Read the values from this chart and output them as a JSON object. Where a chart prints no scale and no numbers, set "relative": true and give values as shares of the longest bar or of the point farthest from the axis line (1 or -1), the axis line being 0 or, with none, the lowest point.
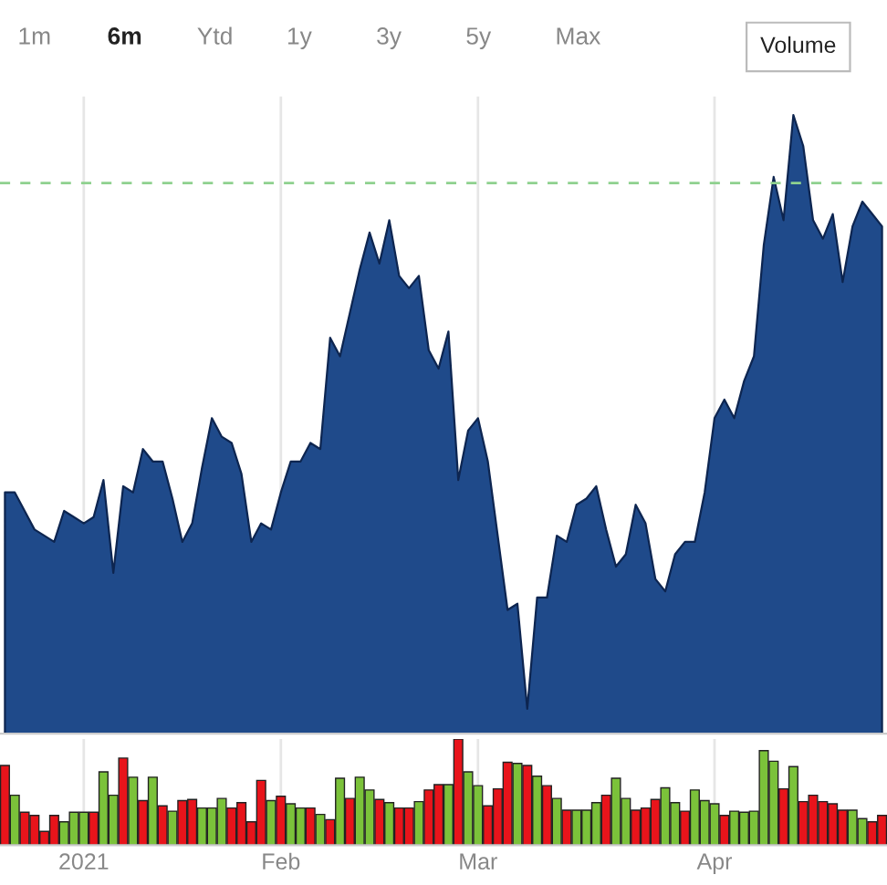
{
  "chart_data": [
    {
      "type": "area",
      "relative": true,
      "grid": "x",
      "annotations": [
        "1m",
        "6m",
        "Ytd",
        "1y",
        "3y",
        "5y",
        "Max",
        "Volume"
      ],
      "categories": [
        null,
        null,
        null,
        null,
        null,
        null,
        null,
        null,
        null,
        null,
        null,
        null,
        null,
        null,
        null,
        null,
        null,
        null,
        null,
        null,
        null,
        null,
        null,
        null,
        null,
        null,
        null,
        null,
        null,
        null,
        null,
        null,
        null,
        null,
        null,
        null,
        null,
        null,
        null,
        null,
        null,
        null,
        null,
        null,
        null,
        null,
        null,
        null,
        null,
        null,
        null,
        null,
        null,
        null,
        null,
        null,
        null,
        null,
        null,
        null,
        null,
        null,
        null,
        null,
        null,
        null,
        null,
        null,
        null,
        null,
        null,
        null,
        null,
        null,
        null,
        null,
        null,
        null,
        null,
        null,
        null,
        null,
        null,
        null,
        null,
        null,
        null,
        null,
        null,
        null
      ],
      "series": [
        {
          "color": "#1f4a8a",
          "values": [
            0.39,
            0.39,
            0.36,
            0.33,
            0.32,
            0.31,
            0.36,
            0.35,
            0.34,
            0.35,
            0.41,
            0.26,
            0.4,
            0.39,
            0.46,
            0.44,
            0.44,
            0.38,
            0.31,
            0.34,
            0.43,
            0.51,
            0.48,
            0.47,
            0.42,
            0.31,
            0.34,
            0.33,
            0.39,
            0.44,
            0.44,
            0.47,
            0.46,
            0.64,
            0.61,
            0.68,
            0.75,
            0.81,
            0.76,
            0.83,
            0.74,
            0.72,
            0.74,
            0.62,
            0.59,
            0.65,
            0.41,
            0.49,
            0.51,
            0.44,
            0.32,
            0.2,
            0.21,
            0.04,
            0.22,
            0.22,
            0.32,
            0.31,
            0.37,
            0.38,
            0.4,
            0.33,
            0.27,
            0.29,
            0.37,
            0.34,
            0.25,
            0.23,
            0.29,
            0.31,
            0.31,
            0.39,
            0.51,
            0.54,
            0.51,
            0.57,
            0.61,
            0.79,
            0.9,
            0.83,
            1.0,
            0.95,
            0.83,
            0.8,
            0.84,
            0.73,
            0.82,
            0.86,
            0.84,
            0.82
          ]
        }
      ],
      "ref_lines": [
        {
          "axis": "y",
          "value": 0.89,
          "color": "#8fd18f",
          "line_style": "dashed"
        }
      ]
    },
    {
      "type": "bar",
      "relative": true,
      "grid": "x",
      "categories": [
        null,
        null,
        null,
        null,
        null,
        null,
        null,
        null,
        "2021",
        null,
        null,
        null,
        null,
        null,
        null,
        null,
        null,
        null,
        null,
        null,
        null,
        null,
        null,
        null,
        null,
        null,
        null,
        null,
        "Feb",
        null,
        null,
        null,
        null,
        null,
        null,
        null,
        null,
        null,
        null,
        null,
        null,
        null,
        null,
        null,
        null,
        null,
        null,
        null,
        "Mar",
        null,
        null,
        null,
        null,
        null,
        null,
        null,
        null,
        null,
        null,
        null,
        null,
        null,
        null,
        null,
        null,
        null,
        null,
        null,
        null,
        null,
        null,
        null,
        "Apr",
        null,
        null,
        null,
        null,
        null,
        null,
        null,
        null,
        null,
        null,
        null,
        null,
        null,
        null,
        null,
        null,
        null
      ],
      "values": [
        0.75,
        0.47,
        0.31,
        0.28,
        0.13,
        0.28,
        0.22,
        0.31,
        0.31,
        0.31,
        0.69,
        0.47,
        0.82,
        0.64,
        0.42,
        0.64,
        0.37,
        0.32,
        0.42,
        0.43,
        0.35,
        0.35,
        0.44,
        0.35,
        0.4,
        0.22,
        0.61,
        0.42,
        0.46,
        0.39,
        0.35,
        0.35,
        0.29,
        0.24,
        0.63,
        0.44,
        0.64,
        0.52,
        0.43,
        0.4,
        0.35,
        0.35,
        0.41,
        0.52,
        0.57,
        0.57,
        1.0,
        0.69,
        0.56,
        0.37,
        0.53,
        0.78,
        0.77,
        0.75,
        0.65,
        0.56,
        0.44,
        0.33,
        0.33,
        0.33,
        0.4,
        0.47,
        0.63,
        0.44,
        0.33,
        0.35,
        0.43,
        0.54,
        0.4,
        0.32,
        0.52,
        0.42,
        0.39,
        0.28,
        0.32,
        0.31,
        0.32,
        0.89,
        0.79,
        0.53,
        0.74,
        0.41,
        0.47,
        0.41,
        0.39,
        0.33,
        0.33,
        0.25,
        0.22,
        0.28
      ],
      "colors": [
        "#e8141b",
        "#7bc23a",
        "#e8141b",
        "#e8141b",
        "#e8141b",
        "#e8141b",
        "#7bc23a",
        "#7bc23a",
        "#7bc23a",
        "#e8141b",
        "#7bc23a",
        "#7bc23a",
        "#e8141b",
        "#7bc23a",
        "#e8141b",
        "#7bc23a",
        "#e8141b",
        "#7bc23a",
        "#e8141b",
        "#e8141b",
        "#7bc23a",
        "#7bc23a",
        "#7bc23a",
        "#e8141b",
        "#e8141b",
        "#e8141b",
        "#e8141b",
        "#7bc23a",
        "#e8141b",
        "#7bc23a",
        "#7bc23a",
        "#e8141b",
        "#7bc23a",
        "#e8141b",
        "#7bc23a",
        "#e8141b",
        "#7bc23a",
        "#7bc23a",
        "#e8141b",
        "#7bc23a",
        "#e8141b",
        "#e8141b",
        "#7bc23a",
        "#e8141b",
        "#e8141b",
        "#7bc23a",
        "#e8141b",
        "#7bc23a",
        "#7bc23a",
        "#e8141b",
        "#e8141b",
        "#e8141b",
        "#7bc23a",
        "#e8141b",
        "#7bc23a",
        "#e8141b",
        "#7bc23a",
        "#e8141b",
        "#7bc23a",
        "#7bc23a",
        "#7bc23a",
        "#e8141b",
        "#7bc23a",
        "#7bc23a",
        "#e8141b",
        "#e8141b",
        "#e8141b",
        "#7bc23a",
        "#7bc23a",
        "#e8141b",
        "#7bc23a",
        "#7bc23a",
        "#7bc23a",
        "#e8141b",
        "#7bc23a",
        "#7bc23a",
        "#7bc23a",
        "#7bc23a",
        "#7bc23a",
        "#e8141b",
        "#7bc23a",
        "#e8141b",
        "#e8141b",
        "#e8141b",
        "#e8141b",
        "#e8141b",
        "#7bc23a",
        "#7bc23a",
        "#e8141b",
        "#e8141b"
      ]
    }
  ]
}
